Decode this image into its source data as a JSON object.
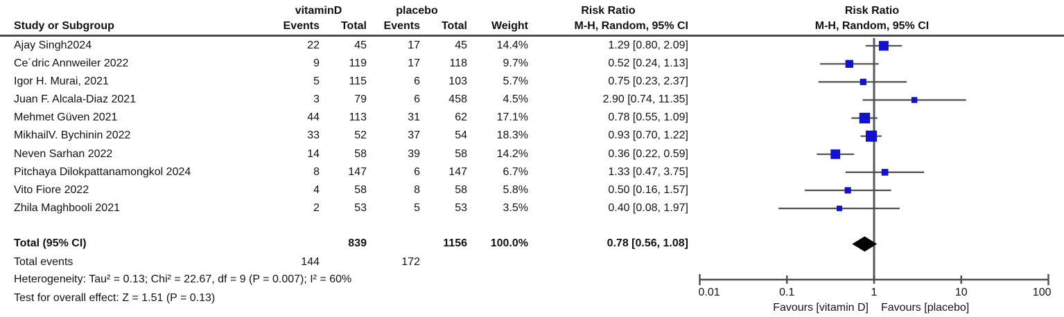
{
  "title_headers": {
    "group1": "vitaminD",
    "group2": "placebo",
    "study": "Study or Subgroup",
    "events": "Events",
    "total": "Total",
    "weight": "Weight",
    "risk_ratio": "Risk Ratio",
    "mh_ci": "M-H, Random, 95% CI"
  },
  "chart_data": {
    "type": "forest",
    "effect_measure": "Risk Ratio",
    "method": "M-H, Random, 95% CI",
    "x_axis": {
      "scale": "log",
      "ticks": [
        0.01,
        0.1,
        1,
        10,
        100
      ],
      "favours_left": "Favours [vitamin D]",
      "favours_right": "Favours [placebo]"
    },
    "studies": [
      {
        "name": "Ajay Singh2024",
        "e1": 22,
        "t1": 45,
        "e2": 17,
        "t2": 45,
        "weight": "14.4%",
        "ci": "1.29 [0.80, 2.09]",
        "rr": 1.29,
        "lo": 0.8,
        "hi": 2.09
      },
      {
        "name": "Ce´dric Annweiler 2022",
        "e1": 9,
        "t1": 119,
        "e2": 17,
        "t2": 118,
        "weight": "9.7%",
        "ci": "0.52 [0.24, 1.13]",
        "rr": 0.52,
        "lo": 0.24,
        "hi": 1.13
      },
      {
        "name": "Igor H. Murai, 2021",
        "e1": 5,
        "t1": 115,
        "e2": 6,
        "t2": 103,
        "weight": "5.7%",
        "ci": "0.75 [0.23, 2.37]",
        "rr": 0.75,
        "lo": 0.23,
        "hi": 2.37
      },
      {
        "name": "Juan F. Alcala-Diaz 2021",
        "e1": 3,
        "t1": 79,
        "e2": 6,
        "t2": 458,
        "weight": "4.5%",
        "ci": "2.90 [0.74, 11.35]",
        "rr": 2.9,
        "lo": 0.74,
        "hi": 11.35
      },
      {
        "name": "Mehmet Güven 2021",
        "e1": 44,
        "t1": 113,
        "e2": 31,
        "t2": 62,
        "weight": "17.1%",
        "ci": "0.78 [0.55, 1.09]",
        "rr": 0.78,
        "lo": 0.55,
        "hi": 1.09
      },
      {
        "name": "MikhailV. Bychinin 2022",
        "e1": 33,
        "t1": 52,
        "e2": 37,
        "t2": 54,
        "weight": "18.3%",
        "ci": "0.93 [0.70, 1.22]",
        "rr": 0.93,
        "lo": 0.7,
        "hi": 1.22
      },
      {
        "name": "Neven Sarhan 2022",
        "e1": 14,
        "t1": 58,
        "e2": 39,
        "t2": 58,
        "weight": "14.2%",
        "ci": "0.36 [0.22, 0.59]",
        "rr": 0.36,
        "lo": 0.22,
        "hi": 0.59
      },
      {
        "name": "Pitchaya Dilokpattanamongkol 2024",
        "e1": 8,
        "t1": 147,
        "e2": 6,
        "t2": 147,
        "weight": "6.7%",
        "ci": "1.33 [0.47, 3.75]",
        "rr": 1.33,
        "lo": 0.47,
        "hi": 3.75
      },
      {
        "name": "Vito Fiore 2022",
        "e1": 4,
        "t1": 58,
        "e2": 8,
        "t2": 58,
        "weight": "5.8%",
        "ci": "0.50 [0.16, 1.57]",
        "rr": 0.5,
        "lo": 0.16,
        "hi": 1.57
      },
      {
        "name": "Zhila Maghbooli 2021",
        "e1": 2,
        "t1": 53,
        "e2": 5,
        "t2": 53,
        "weight": "3.5%",
        "ci": "0.40 [0.08, 1.97]",
        "rr": 0.4,
        "lo": 0.08,
        "hi": 1.97
      }
    ],
    "total": {
      "label": "Total (95% CI)",
      "t1": 839,
      "t2": 1156,
      "weight": "100.0%",
      "ci": "0.78 [0.56, 1.08]",
      "rr": 0.78,
      "lo": 0.56,
      "hi": 1.08
    }
  },
  "footer": {
    "total_events_label": "Total events",
    "total_events_1": 144,
    "total_events_2": 172,
    "heterogeneity": "Heterogeneity: Tau² = 0.13; Chi² = 22.67, df = 9 (P = 0.007); I² = 60%",
    "overall_effect": "Test for overall effect: Z = 1.51 (P = 0.13)"
  },
  "colors": {
    "square": "#1212cc",
    "ci_line": "#4d4d4d",
    "diamond": "#000000",
    "axis": "#4d4d4d",
    "rule": "#4a4a4a"
  }
}
